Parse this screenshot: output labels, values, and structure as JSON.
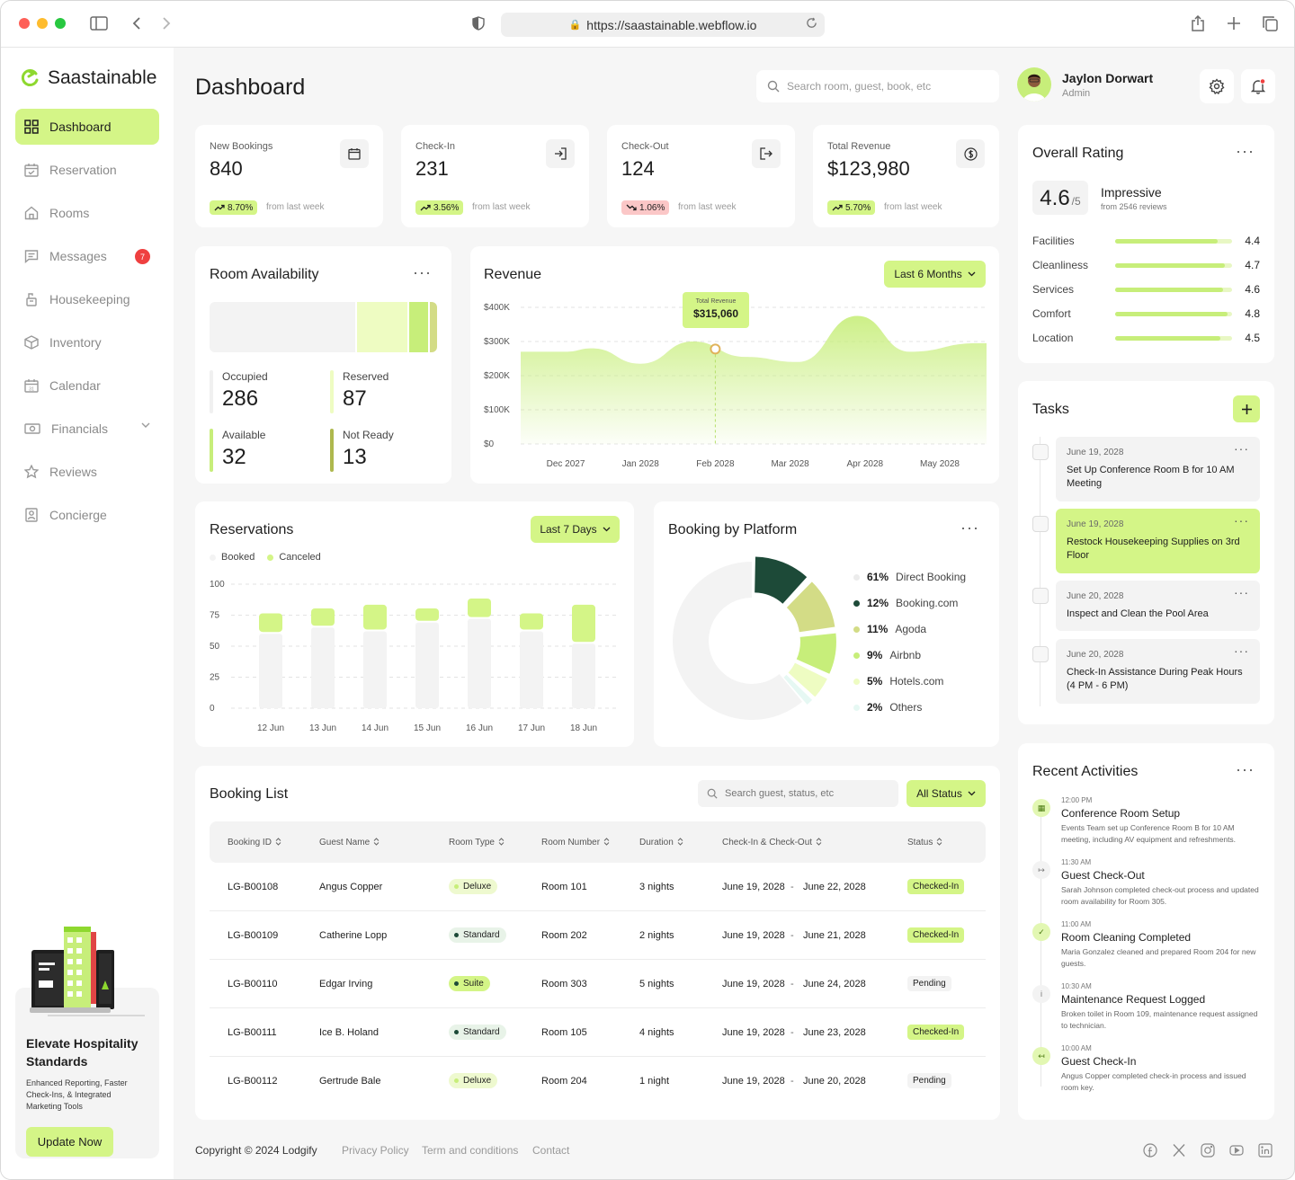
{
  "browser": {
    "url": "https://saastainable.webflow.io"
  },
  "brand": {
    "name": "Saastainable",
    "accent": "#d4f587",
    "dark_green": "#1d4a38"
  },
  "sidebar": {
    "items": [
      {
        "label": "Dashboard",
        "icon": "grid-icon",
        "active": true
      },
      {
        "label": "Reservation",
        "icon": "calendar-check-icon"
      },
      {
        "label": "Rooms",
        "icon": "home-icon"
      },
      {
        "label": "Messages",
        "icon": "message-icon",
        "badge": "7"
      },
      {
        "label": "Housekeeping",
        "icon": "housekeeping-icon"
      },
      {
        "label": "Inventory",
        "icon": "box-icon"
      },
      {
        "label": "Calendar",
        "icon": "calendar-icon"
      },
      {
        "label": "Financials",
        "icon": "money-icon",
        "expandable": true
      },
      {
        "label": "Reviews",
        "icon": "star-icon"
      },
      {
        "label": "Concierge",
        "icon": "concierge-icon"
      }
    ],
    "promo": {
      "title": "Elevate Hospitality Standards",
      "text": "Enhanced Reporting, Faster Check-Ins, & Integrated Marketing Tools",
      "button": "Update Now"
    }
  },
  "header": {
    "title": "Dashboard",
    "search_placeholder": "Search room, guest, book, etc",
    "user": {
      "name": "Jaylon Dorwart",
      "role": "Admin"
    }
  },
  "stats": [
    {
      "label": "New Bookings",
      "value": "840",
      "change": "8.70%",
      "direction": "up",
      "note": "from last week",
      "icon": "calendar-icon"
    },
    {
      "label": "Check-In",
      "value": "231",
      "change": "3.56%",
      "direction": "up",
      "note": "from last week",
      "icon": "login-icon"
    },
    {
      "label": "Check-Out",
      "value": "124",
      "change": "1.06%",
      "direction": "down",
      "note": "from last week",
      "icon": "logout-icon"
    },
    {
      "label": "Total Revenue",
      "value": "$123,980",
      "change": "5.70%",
      "direction": "up",
      "note": "from last week",
      "icon": "dollar-icon"
    }
  ],
  "room_availability": {
    "title": "Room Availability",
    "blocks": [
      {
        "label": "Occupied",
        "value": "286",
        "color": "#f3f3f3"
      },
      {
        "label": "Reserved",
        "value": "87",
        "color": "#eefcc2"
      },
      {
        "label": "Available",
        "value": "32",
        "color": "#c7ee7a"
      },
      {
        "label": "Not Ready",
        "value": "13",
        "color": "#d3dc86"
      }
    ]
  },
  "revenue": {
    "title": "Revenue",
    "filter": "Last 6 Months",
    "tooltip": {
      "label": "Total Revenue",
      "value": "$315,060"
    }
  },
  "reservations": {
    "title": "Reservations",
    "filter": "Last 7 Days",
    "legend": [
      "Booked",
      "Canceled"
    ]
  },
  "booking_platform": {
    "title": "Booking by Platform",
    "items": [
      {
        "pct": "61%",
        "name": "Direct Booking",
        "color": "#f3f3f3",
        "value": 61
      },
      {
        "pct": "12%",
        "name": "Booking.com",
        "color": "#1d4a38",
        "value": 12
      },
      {
        "pct": "11%",
        "name": "Agoda",
        "color": "#d3dc86",
        "value": 11
      },
      {
        "pct": "9%",
        "name": "Airbnb",
        "color": "#c7ee7a",
        "value": 9
      },
      {
        "pct": "5%",
        "name": "Hotels.com",
        "color": "#eefcc2",
        "value": 5
      },
      {
        "pct": "2%",
        "name": "Others",
        "color": "#e6f8f3",
        "value": 2
      }
    ]
  },
  "booking_list": {
    "title": "Booking List",
    "search_placeholder": "Search guest, status, etc",
    "filter": "All Status",
    "columns": [
      "Booking ID",
      "Guest Name",
      "Room Type",
      "Room Number",
      "Duration",
      "Check-In & Check-Out",
      "Status"
    ],
    "rows": [
      {
        "id": "LG-B00108",
        "guest": "Angus Copper",
        "type": "Deluxe",
        "room": "Room 101",
        "duration": "3 nights",
        "checkin": "June 19, 2028",
        "checkout": "June 22, 2028",
        "status": "Checked-In"
      },
      {
        "id": "LG-B00109",
        "guest": "Catherine Lopp",
        "type": "Standard",
        "room": "Room 202",
        "duration": "2 nights",
        "checkin": "June 19, 2028",
        "checkout": "June 21, 2028",
        "status": "Checked-In"
      },
      {
        "id": "LG-B00110",
        "guest": "Edgar Irving",
        "type": "Suite",
        "room": "Room 303",
        "duration": "5 nights",
        "checkin": "June 19, 2028",
        "checkout": "June 24, 2028",
        "status": "Pending"
      },
      {
        "id": "LG-B00111",
        "guest": "Ice B. Holand",
        "type": "Standard",
        "room": "Room 105",
        "duration": "4 nights",
        "checkin": "June 19, 2028",
        "checkout": "June 23, 2028",
        "status": "Checked-In"
      },
      {
        "id": "LG-B00112",
        "guest": "Gertrude Bale",
        "type": "Deluxe",
        "room": "Room 204",
        "duration": "1 night",
        "checkin": "June 19, 2028",
        "checkout": "June 20, 2028",
        "status": "Pending"
      }
    ]
  },
  "overall_rating": {
    "title": "Overall Rating",
    "score": "4.6",
    "out_of": "/5",
    "verdict": "Impressive",
    "reviews": "from 2546 reviews",
    "categories": [
      {
        "label": "Facilities",
        "value": "4.4"
      },
      {
        "label": "Cleanliness",
        "value": "4.7"
      },
      {
        "label": "Services",
        "value": "4.6"
      },
      {
        "label": "Comfort",
        "value": "4.8"
      },
      {
        "label": "Location",
        "value": "4.5"
      }
    ]
  },
  "tasks": {
    "title": "Tasks",
    "items": [
      {
        "date": "June 19, 2028",
        "text": "Set Up Conference Room B for 10 AM Meeting",
        "highlight": false
      },
      {
        "date": "June 19, 2028",
        "text": "Restock Housekeeping Supplies on 3rd Floor",
        "highlight": true
      },
      {
        "date": "June 20, 2028",
        "text": "Inspect and Clean the Pool Area",
        "highlight": false
      },
      {
        "date": "June 20, 2028",
        "text": "Check-In Assistance During Peak Hours (4 PM - 6 PM)",
        "highlight": false
      }
    ]
  },
  "recent_activities": {
    "title": "Recent Activities",
    "items": [
      {
        "time": "12:00 PM",
        "title": "Conference Room Setup",
        "desc": "Events Team set up Conference Room B for 10 AM meeting, including AV equipment and refreshments.",
        "icon": "building-icon"
      },
      {
        "time": "11:30 AM",
        "title": "Guest Check-Out",
        "desc": "Sarah Johnson completed check-out process and updated room availability for Room 305.",
        "icon": "logout-icon"
      },
      {
        "time": "11:00 AM",
        "title": "Room Cleaning Completed",
        "desc": "Maria Gonzalez cleaned and prepared Room 204 for new guests.",
        "icon": "check-icon"
      },
      {
        "time": "10:30 AM",
        "title": "Maintenance Request Logged",
        "desc": "Broken toilet in Room 109, maintenance request assigned to technician.",
        "icon": "info-icon"
      },
      {
        "time": "10:00 AM",
        "title": "Guest Check-In",
        "desc": "Angus Copper completed check-in process and issued room key.",
        "icon": "login-icon"
      }
    ]
  },
  "footer": {
    "copyright": "Copyright © 2024 Lodgify",
    "links": [
      "Privacy Policy",
      "Term and conditions",
      "Contact"
    ],
    "social": [
      "facebook-icon",
      "x-icon",
      "instagram-icon",
      "youtube-icon",
      "linkedin-icon"
    ]
  },
  "chart_data": [
    {
      "type": "area",
      "title": "Revenue",
      "x": [
        "Dec 2027",
        "Jan 2028",
        "Feb 2028",
        "Mar 2028",
        "Apr 2028",
        "May 2028"
      ],
      "yticks": [
        "$400K",
        "$300K",
        "$200K",
        "$100K",
        "$0"
      ],
      "ylim": [
        0,
        400000
      ],
      "series": [
        {
          "points": [
            [
              0,
              270000
            ],
            [
              0.35,
              280000
            ],
            [
              1.0,
              235000
            ],
            [
              1.7,
              300000
            ],
            [
              2.4,
              255000
            ],
            [
              3.1,
              240000
            ],
            [
              3.9,
              375000
            ],
            [
              4.6,
              270000
            ],
            [
              5.5,
              295000
            ]
          ]
        }
      ],
      "highlight": {
        "x": "Feb 2028",
        "value": 315060
      }
    },
    {
      "type": "bar",
      "title": "Reservations",
      "categories": [
        "12 Jun",
        "13 Jun",
        "14 Jun",
        "15 Jun",
        "16 Jun",
        "17 Jun",
        "18 Jun"
      ],
      "yticks": [
        "100",
        "75",
        "50",
        "25",
        "0"
      ],
      "ylim": [
        0,
        100
      ],
      "series": [
        {
          "name": "Booked",
          "values": [
            60,
            65,
            62,
            69,
            72,
            62,
            52
          ],
          "color": "#f3f3f3"
        },
        {
          "name": "Canceled",
          "values": [
            15,
            14,
            20,
            10,
            15,
            13,
            30
          ],
          "color": "#d4f587"
        }
      ]
    },
    {
      "type": "pie",
      "title": "Booking by Platform",
      "categories": [
        "Direct Booking",
        "Booking.com",
        "Agoda",
        "Airbnb",
        "Hotels.com",
        "Others"
      ],
      "values": [
        61,
        12,
        11,
        9,
        5,
        2
      ]
    }
  ]
}
